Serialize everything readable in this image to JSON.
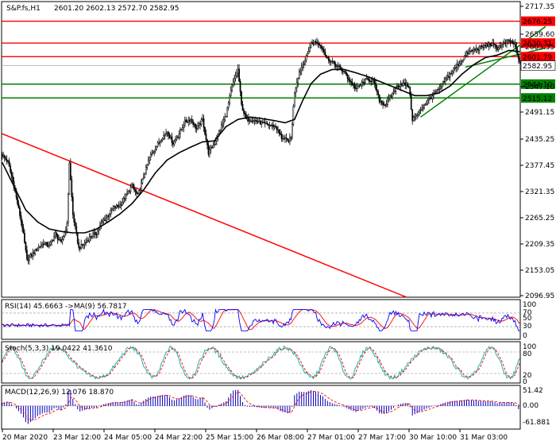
{
  "chart_data": {
    "type": "candlestick",
    "header": {
      "symbol": "S&P.fs,H1",
      "ohlc": "2601.20 2602.13 2572.70 2582.95"
    },
    "main": {
      "ylim": [
        2096.95,
        2717.35
      ],
      "y_ticks": [
        "2717.35",
        "2659.60",
        "2603.35",
        "2547.10",
        "2491.15",
        "2435.25",
        "2377.45",
        "2321.35",
        "2265.25",
        "2209.35",
        "2153.05",
        "2096.95"
      ],
      "levels": [
        {
          "label": "2676.25",
          "value": 2676.25,
          "color": "#ff0000"
        },
        {
          "label": "2630.31",
          "value": 2630.31,
          "color": "#ff0000"
        },
        {
          "label": "2601.79",
          "value": 2601.79,
          "color": "#ff0000"
        },
        {
          "label": "2544.10",
          "value": 2544.1,
          "color": "#008000"
        },
        {
          "label": "2515.12",
          "value": 2515.12,
          "color": "#008000"
        }
      ],
      "last_price": {
        "label": "2582.95",
        "value": 2582.95
      },
      "anchors": [
        [
          0,
          2395
        ],
        [
          5,
          2380
        ],
        [
          10,
          2330
        ],
        [
          17,
          2245
        ],
        [
          21,
          2175
        ],
        [
          25,
          2185
        ],
        [
          30,
          2200
        ],
        [
          35,
          2210
        ],
        [
          40,
          2205
        ],
        [
          45,
          2230
        ],
        [
          50,
          2210
        ],
        [
          55,
          2250
        ],
        [
          57,
          2380
        ],
        [
          60,
          2270
        ],
        [
          65,
          2200
        ],
        [
          70,
          2210
        ],
        [
          75,
          2225
        ],
        [
          80,
          2232
        ],
        [
          85,
          2255
        ],
        [
          90,
          2270
        ],
        [
          95,
          2285
        ],
        [
          100,
          2290
        ],
        [
          105,
          2310
        ],
        [
          110,
          2330
        ],
        [
          115,
          2310
        ],
        [
          120,
          2350
        ],
        [
          125,
          2390
        ],
        [
          130,
          2410
        ],
        [
          135,
          2430
        ],
        [
          140,
          2445
        ],
        [
          145,
          2420
        ],
        [
          150,
          2440
        ],
        [
          155,
          2465
        ],
        [
          160,
          2470
        ],
        [
          165,
          2450
        ],
        [
          170,
          2470
        ],
        [
          175,
          2400
        ],
        [
          180,
          2420
        ],
        [
          185,
          2450
        ],
        [
          190,
          2480
        ],
        [
          195,
          2540
        ],
        [
          200,
          2575
        ],
        [
          203,
          2500
        ],
        [
          207,
          2470
        ],
        [
          212,
          2470
        ],
        [
          217,
          2465
        ],
        [
          222,
          2460
        ],
        [
          227,
          2458
        ],
        [
          232,
          2455
        ],
        [
          237,
          2432
        ],
        [
          242,
          2425
        ],
        [
          245,
          2430
        ],
        [
          248,
          2528
        ],
        [
          252,
          2570
        ],
        [
          258,
          2600
        ],
        [
          262,
          2630
        ],
        [
          267,
          2632
        ],
        [
          272,
          2620
        ],
        [
          275,
          2600
        ],
        [
          280,
          2590
        ],
        [
          285,
          2580
        ],
        [
          290,
          2570
        ],
        [
          295,
          2550
        ],
        [
          300,
          2535
        ],
        [
          305,
          2545
        ],
        [
          310,
          2555
        ],
        [
          315,
          2550
        ],
        [
          320,
          2510
        ],
        [
          325,
          2500
        ],
        [
          330,
          2520
        ],
        [
          335,
          2540
        ],
        [
          340,
          2545
        ],
        [
          345,
          2540
        ],
        [
          348,
          2470
        ],
        [
          352,
          2480
        ],
        [
          358,
          2500
        ],
        [
          365,
          2520
        ],
        [
          370,
          2530
        ],
        [
          375,
          2550
        ],
        [
          380,
          2565
        ],
        [
          385,
          2580
        ],
        [
          390,
          2595
        ],
        [
          395,
          2610
        ],
        [
          400,
          2615
        ],
        [
          405,
          2620
        ],
        [
          410,
          2625
        ],
        [
          415,
          2628
        ],
        [
          420,
          2620
        ],
        [
          425,
          2628
        ],
        [
          430,
          2635
        ],
        [
          435,
          2628
        ],
        [
          438,
          2595
        ],
        [
          440,
          2583
        ]
      ],
      "ma_anchors": [
        [
          0,
          2380
        ],
        [
          10,
          2330
        ],
        [
          20,
          2280
        ],
        [
          30,
          2255
        ],
        [
          40,
          2240
        ],
        [
          50,
          2235
        ],
        [
          60,
          2232
        ],
        [
          70,
          2232
        ],
        [
          80,
          2240
        ],
        [
          90,
          2255
        ],
        [
          100,
          2272
        ],
        [
          110,
          2293
        ],
        [
          120,
          2322
        ],
        [
          130,
          2358
        ],
        [
          140,
          2385
        ],
        [
          150,
          2400
        ],
        [
          160,
          2412
        ],
        [
          170,
          2423
        ],
        [
          180,
          2425
        ],
        [
          185,
          2440
        ],
        [
          190,
          2455
        ],
        [
          200,
          2470
        ],
        [
          210,
          2475
        ],
        [
          220,
          2472
        ],
        [
          230,
          2468
        ],
        [
          240,
          2463
        ],
        [
          248,
          2470
        ],
        [
          255,
          2510
        ],
        [
          262,
          2545
        ],
        [
          270,
          2565
        ],
        [
          280,
          2575
        ],
        [
          290,
          2575
        ],
        [
          300,
          2568
        ],
        [
          310,
          2560
        ],
        [
          320,
          2550
        ],
        [
          330,
          2540
        ],
        [
          340,
          2530
        ],
        [
          350,
          2520
        ],
        [
          360,
          2520
        ],
        [
          370,
          2525
        ],
        [
          380,
          2540
        ],
        [
          390,
          2565
        ],
        [
          400,
          2585
        ],
        [
          410,
          2600
        ],
        [
          420,
          2605
        ],
        [
          430,
          2615
        ],
        [
          440,
          2612
        ]
      ],
      "trendlines": [
        {
          "color": "#ff0000",
          "from": [
            0,
            2440
          ],
          "to": [
            343,
            2096.95
          ]
        },
        {
          "color": "#008000",
          "from": [
            355,
            2475
          ],
          "to": [
            461,
            2665
          ]
        },
        {
          "color": "#008000",
          "from": [
            393,
            2580
          ],
          "to": [
            461,
            2620
          ]
        }
      ]
    },
    "rsi": {
      "label": "RSI(14) 45.6663 ->MA(9) 56.7817",
      "ylim": [
        0,
        100
      ],
      "y_ticks": [
        "100",
        "70",
        "50",
        "30",
        "0"
      ],
      "levels": [
        70,
        30
      ]
    },
    "stoch": {
      "label": "Stoch(5,3,3) 19.0422 41.3610",
      "ylim": [
        0,
        100
      ],
      "y_ticks": [
        "100",
        "80",
        "20",
        "0"
      ],
      "levels": [
        80,
        20
      ]
    },
    "macd": {
      "label": "MACD(12,26,9) 12.076 18.870",
      "ylim": [
        -61.881,
        51.42
      ],
      "y_ticks": [
        "51.42",
        "0.00",
        "-61.881"
      ]
    },
    "x_labels": [
      "20 Mar 2020",
      "23 Mar 12:00",
      "24 Mar 05:00",
      "24 Mar 22:00",
      "25 Mar 15:00",
      "26 Mar 08:00",
      "27 Mar 01:00",
      "27 Mar 17:00",
      "30 Mar 10:00",
      "31 Mar 03:00"
    ],
    "colors": {
      "up": "#ffffff",
      "down": "#000000",
      "ma": "#000000",
      "rsi": "#0000ff",
      "rsi_ma": "#ff0000",
      "stoch_k": "#20b2aa",
      "stoch_d": "#ff0000",
      "macd": "#0000c0",
      "signal": "#ff0000"
    }
  }
}
